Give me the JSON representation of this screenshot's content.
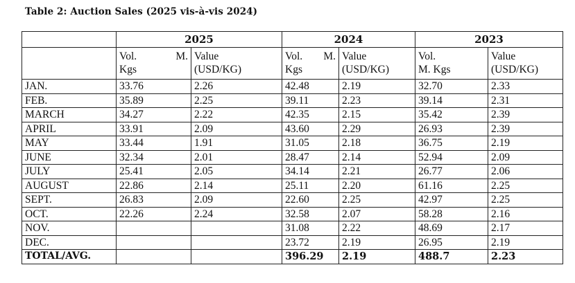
{
  "caption": "Table 2: Auction Sales (2025 vis-à-vis 2024)",
  "years": [
    "2025",
    "2024",
    "2023"
  ],
  "subheaders": {
    "vol": [
      "Vol.",
      "M."
    ],
    "kgs": "Kgs",
    "vol_2023_line1": "Vol.",
    "vol_2023_line2": "M. Kgs",
    "value_line1": "Value",
    "value_line2": "(USD/KG)"
  },
  "rows": [
    {
      "month": "JAN.",
      "v2025": "33.76",
      "p2025": "2.26",
      "v2024": "42.48",
      "p2024": "2.19",
      "v2023": "32.70",
      "p2023": "2.33"
    },
    {
      "month": "FEB.",
      "v2025": "35.89",
      "p2025": "2.25",
      "v2024": "39.11",
      "p2024": "2.23",
      "v2023": "39.14",
      "p2023": "2.31"
    },
    {
      "month": "MARCH",
      "v2025": "34.27",
      "p2025": "2.22",
      "v2024": "42.35",
      "p2024": "2.15",
      "v2023": "35.42",
      "p2023": "2.39"
    },
    {
      "month": "APRIL",
      "v2025": "33.91",
      "p2025": "2.09",
      "v2024": "43.60",
      "p2024": "2.29",
      "v2023": "26.93",
      "p2023": "2.39"
    },
    {
      "month": "MAY",
      "v2025": "33.44",
      "p2025": "1.91",
      "v2024": "31.05",
      "p2024": "2.18",
      "v2023": "36.75",
      "p2023": "2.19"
    },
    {
      "month": "JUNE",
      "v2025": "32.34",
      "p2025": "2.01",
      "v2024": "28.47",
      "p2024": "2.14",
      "v2023": "52.94",
      "p2023": "2.09"
    },
    {
      "month": "JULY",
      "v2025": "25.41",
      "p2025": "2.05",
      "v2024": "34.14",
      "p2024": "2.21",
      "v2023": "26.77",
      "p2023": "2.06"
    },
    {
      "month": "AUGUST",
      "v2025": "22.86",
      "p2025": "2.14",
      "v2024": "25.11",
      "p2024": "2.20",
      "v2023": "61.16",
      "p2023": "2.25"
    },
    {
      "month": "SEPT.",
      "v2025": "26.83",
      "p2025": "2.09",
      "v2024": "22.60",
      "p2024": "2.25",
      "v2023": "42.97",
      "p2023": "2.25"
    },
    {
      "month": "OCT.",
      "v2025": "22.26",
      "p2025": "2.24",
      "v2024": "32.58",
      "p2024": "2.07",
      "v2023": "58.28",
      "p2023": "2.16"
    },
    {
      "month": "NOV.",
      "v2025": "",
      "p2025": "",
      "v2024": "31.08",
      "p2024": "2.22",
      "v2023": "48.69",
      "p2023": "2.17"
    },
    {
      "month": "DEC.",
      "v2025": "",
      "p2025": "",
      "v2024": "23.72",
      "p2024": "2.19",
      "v2023": "26.95",
      "p2023": "2.19"
    }
  ],
  "total": {
    "label": "TOTAL/AVG.",
    "v2025": "",
    "p2025": "",
    "v2024": "396.29",
    "p2024": "2.19",
    "v2023": "488.7",
    "p2023": "2.23"
  }
}
